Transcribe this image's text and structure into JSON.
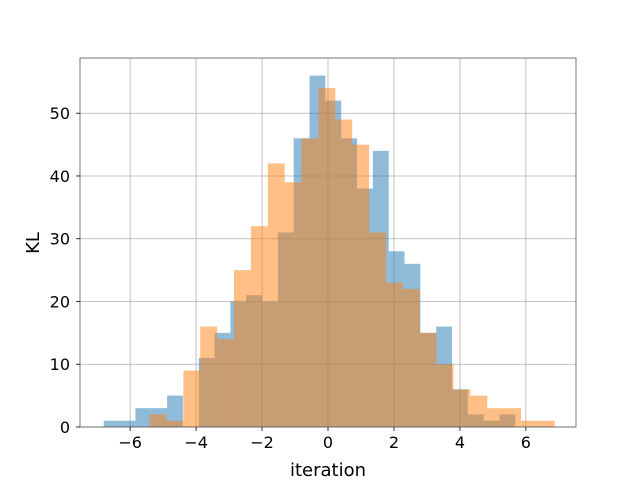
{
  "chart_data": {
    "type": "bar",
    "subtype": "overlaid-histogram",
    "xlabel": "iteration",
    "ylabel": "KL",
    "xlim": [
      -7.52,
      7.52
    ],
    "ylim": [
      0,
      58.8
    ],
    "xticks": [
      -6,
      -4,
      -2,
      0,
      2,
      4,
      6
    ],
    "xtick_labels": [
      "−6",
      "−4",
      "−2",
      "0",
      "2",
      "4",
      "6"
    ],
    "yticks": [
      0,
      10,
      20,
      30,
      40,
      50
    ],
    "yticks_labels": [
      "0",
      "10",
      "20",
      "30",
      "40",
      "50"
    ],
    "grid": true,
    "legend": "none",
    "series": [
      {
        "color": "#1f77b4",
        "opacity": 0.5,
        "bin_start": -6.8,
        "bin_width": 0.48,
        "values": [
          1,
          1,
          3,
          3,
          5,
          0,
          11,
          15,
          20,
          21,
          20,
          31,
          46,
          56,
          52,
          46,
          38,
          44,
          28,
          26,
          15,
          16,
          6,
          2,
          1,
          2
        ]
      },
      {
        "color": "#ff7f0e",
        "opacity": 0.5,
        "bin_start": -5.41,
        "bin_width": 0.512,
        "values": [
          2,
          1,
          9,
          16,
          14,
          25,
          32,
          42,
          39,
          46,
          54,
          49,
          45,
          31,
          23,
          22,
          15,
          10,
          6,
          5,
          3,
          3,
          1,
          1
        ]
      }
    ]
  }
}
